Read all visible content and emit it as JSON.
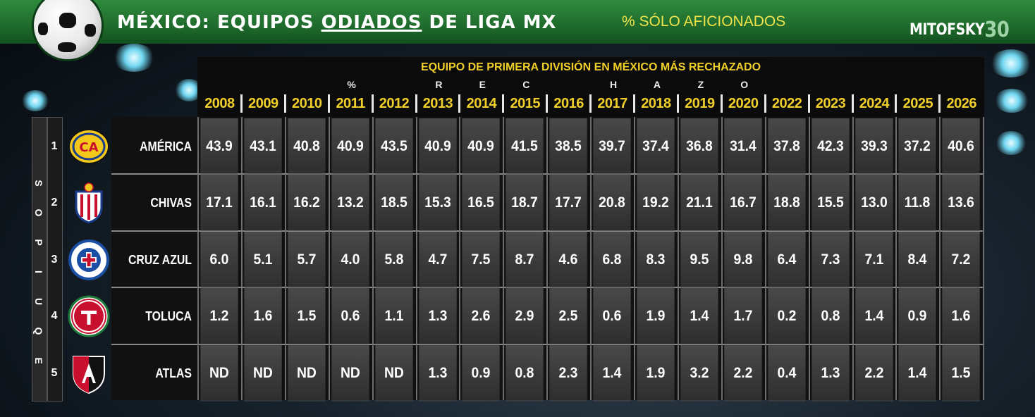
{
  "header": {
    "title_part1": "MÉXICO: EQUIPOS ",
    "title_part2": "ODIADOS",
    "title_part3": " DE LIGA MX",
    "subtitle": "% SÓLO AFICIONADOS",
    "brand_text": "MITOFSKY",
    "brand_num": "30"
  },
  "panel": {
    "title": "EQUIPO DE PRIMERA DIVISIÓN EN MÉXICO MÁS RECHAZADO",
    "rechazado_letters": [
      "%",
      "R",
      "E",
      "C",
      "H",
      "A",
      "Z",
      "O"
    ]
  },
  "side_label": [
    "E",
    "Q",
    "U",
    "I",
    "P",
    "O",
    "S"
  ],
  "colors": {
    "year_text": "#f1cf2a",
    "header_green": "#1f6b2c",
    "subtitle_yellow": "#f0e34a",
    "america_yellow": "#f3c81b",
    "chivas_red": "#c8102e",
    "cruzazul_blue": "#1a4fa3",
    "toluca_red": "#c8102e",
    "atlas_red": "#c8102e"
  },
  "chart_data": {
    "type": "table",
    "title": "EQUIPO DE PRIMERA DIVISIÓN EN MÉXICO MÁS RECHAZADO",
    "columns": [
      "2008",
      "2009",
      "2010",
      "2011",
      "2012",
      "2013",
      "2014",
      "2015",
      "2016",
      "2017",
      "2018",
      "2019",
      "2020",
      "2022",
      "2023",
      "2024",
      "2025",
      "2026"
    ],
    "rows": [
      {
        "rank": "1",
        "team": "AMÉRICA",
        "logo": "america-logo-icon",
        "values": [
          "43.9",
          "43.1",
          "40.8",
          "40.9",
          "43.5",
          "40.9",
          "40.9",
          "41.5",
          "38.5",
          "39.7",
          "37.4",
          "36.8",
          "31.4",
          "37.8",
          "42.3",
          "39.3",
          "37.2",
          "40.6"
        ]
      },
      {
        "rank": "2",
        "team": "CHIVAS",
        "logo": "chivas-logo-icon",
        "values": [
          "17.1",
          "16.1",
          "16.2",
          "13.2",
          "18.5",
          "15.3",
          "16.5",
          "18.7",
          "17.7",
          "20.8",
          "19.2",
          "21.1",
          "16.7",
          "18.8",
          "15.5",
          "13.0",
          "11.8",
          "13.6"
        ]
      },
      {
        "rank": "3",
        "team": "CRUZ AZUL",
        "logo": "cruz-azul-logo-icon",
        "values": [
          "6.0",
          "5.1",
          "5.7",
          "4.0",
          "5.8",
          "4.7",
          "7.5",
          "8.7",
          "4.6",
          "6.8",
          "8.3",
          "9.5",
          "9.8",
          "6.4",
          "7.3",
          "7.1",
          "8.4",
          "7.2"
        ]
      },
      {
        "rank": "4",
        "team": "TOLUCA",
        "logo": "toluca-logo-icon",
        "values": [
          "1.2",
          "1.6",
          "1.5",
          "0.6",
          "1.1",
          "1.3",
          "2.6",
          "2.9",
          "2.5",
          "0.6",
          "1.9",
          "1.4",
          "1.7",
          "0.2",
          "0.8",
          "1.4",
          "0.9",
          "1.6"
        ]
      },
      {
        "rank": "5",
        "team": "ATLAS",
        "logo": "atlas-logo-icon",
        "values": [
          "ND",
          "ND",
          "ND",
          "ND",
          "ND",
          "1.3",
          "0.9",
          "0.8",
          "2.3",
          "1.4",
          "1.9",
          "3.2",
          "2.2",
          "0.4",
          "1.3",
          "2.2",
          "1.4",
          "1.5"
        ]
      }
    ]
  }
}
